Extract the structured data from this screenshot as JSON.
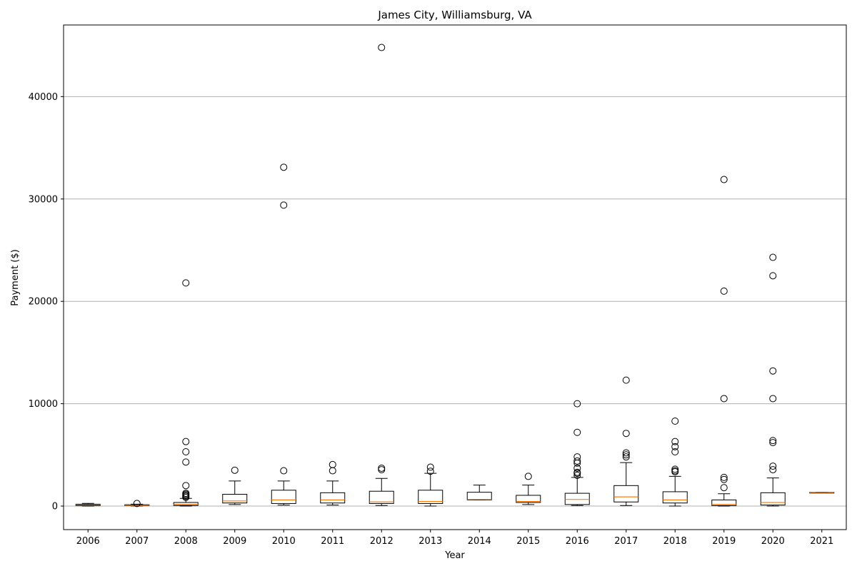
{
  "chart_data": {
    "type": "box",
    "title": "James City, Williamsburg, VA",
    "xlabel": "Year",
    "ylabel": "Payment ($)",
    "ylim": [
      -2300,
      47000
    ],
    "yticks": [
      0,
      10000,
      20000,
      30000,
      40000
    ],
    "grid": "y",
    "colors": {
      "box": "#000000",
      "median": "#ff7f0e",
      "grid": "#b0b0b0"
    },
    "categories": [
      "2006",
      "2007",
      "2008",
      "2009",
      "2010",
      "2011",
      "2012",
      "2013",
      "2014",
      "2015",
      "2016",
      "2017",
      "2018",
      "2019",
      "2020",
      "2021"
    ],
    "boxes": [
      {
        "year": "2006",
        "whislo": 0,
        "q1": 40,
        "med": 100,
        "q3": 180,
        "whishi": 260,
        "fliers": []
      },
      {
        "year": "2007",
        "whislo": 10,
        "q1": 40,
        "med": 70,
        "q3": 130,
        "whishi": 180,
        "fliers": [
          250
        ]
      },
      {
        "year": "2008",
        "whislo": 0,
        "q1": 60,
        "med": 150,
        "q3": 350,
        "whishi": 750,
        "fliers": [
          850,
          950,
          1050,
          1150,
          1250,
          2000,
          4300,
          5300,
          6300,
          21800
        ]
      },
      {
        "year": "2009",
        "whislo": 150,
        "q1": 300,
        "med": 500,
        "q3": 1150,
        "whishi": 2450,
        "fliers": [
          3500
        ]
      },
      {
        "year": "2010",
        "whislo": 100,
        "q1": 250,
        "med": 600,
        "q3": 1550,
        "whishi": 2450,
        "fliers": [
          3450,
          29400,
          33100
        ]
      },
      {
        "year": "2011",
        "whislo": 100,
        "q1": 300,
        "med": 600,
        "q3": 1300,
        "whishi": 2450,
        "fliers": [
          3450,
          4050
        ]
      },
      {
        "year": "2012",
        "whislo": 50,
        "q1": 250,
        "med": 400,
        "q3": 1450,
        "whishi": 2700,
        "fliers": [
          3550,
          3700,
          44800
        ]
      },
      {
        "year": "2013",
        "whislo": 0,
        "q1": 250,
        "med": 450,
        "q3": 1550,
        "whishi": 3200,
        "fliers": [
          3400,
          3800
        ]
      },
      {
        "year": "2014",
        "whislo": 600,
        "q1": 600,
        "med": 650,
        "q3": 1350,
        "whishi": 2050,
        "fliers": []
      },
      {
        "year": "2015",
        "whislo": 150,
        "q1": 350,
        "med": 450,
        "q3": 1050,
        "whishi": 2050,
        "fliers": [
          2900
        ]
      },
      {
        "year": "2016",
        "whislo": 50,
        "q1": 150,
        "med": 650,
        "q3": 1250,
        "whishi": 2800,
        "fliers": [
          3000,
          3200,
          3300,
          3700,
          4200,
          4400,
          4800,
          7200,
          10000
        ]
      },
      {
        "year": "2017",
        "whislo": 50,
        "q1": 400,
        "med": 900,
        "q3": 2000,
        "whishi": 4250,
        "fliers": [
          4800,
          5000,
          5200,
          7100,
          12300
        ]
      },
      {
        "year": "2018",
        "whislo": 0,
        "q1": 300,
        "med": 600,
        "q3": 1400,
        "whishi": 2900,
        "fliers": [
          3350,
          3450,
          3600,
          5300,
          5800,
          6300,
          8300
        ]
      },
      {
        "year": "2019",
        "whislo": 0,
        "q1": 50,
        "med": 150,
        "q3": 600,
        "whishi": 1200,
        "fliers": [
          1800,
          2600,
          2800,
          10500,
          21000,
          31900
        ]
      },
      {
        "year": "2020",
        "whislo": 0,
        "q1": 100,
        "med": 350,
        "q3": 1300,
        "whishi": 2750,
        "fliers": [
          3550,
          3900,
          6200,
          6400,
          10500,
          13200,
          22500,
          24300
        ]
      },
      {
        "year": "2021",
        "whislo": 1300,
        "q1": 1300,
        "med": 1320,
        "q3": 1340,
        "whishi": 1340,
        "fliers": []
      }
    ]
  }
}
